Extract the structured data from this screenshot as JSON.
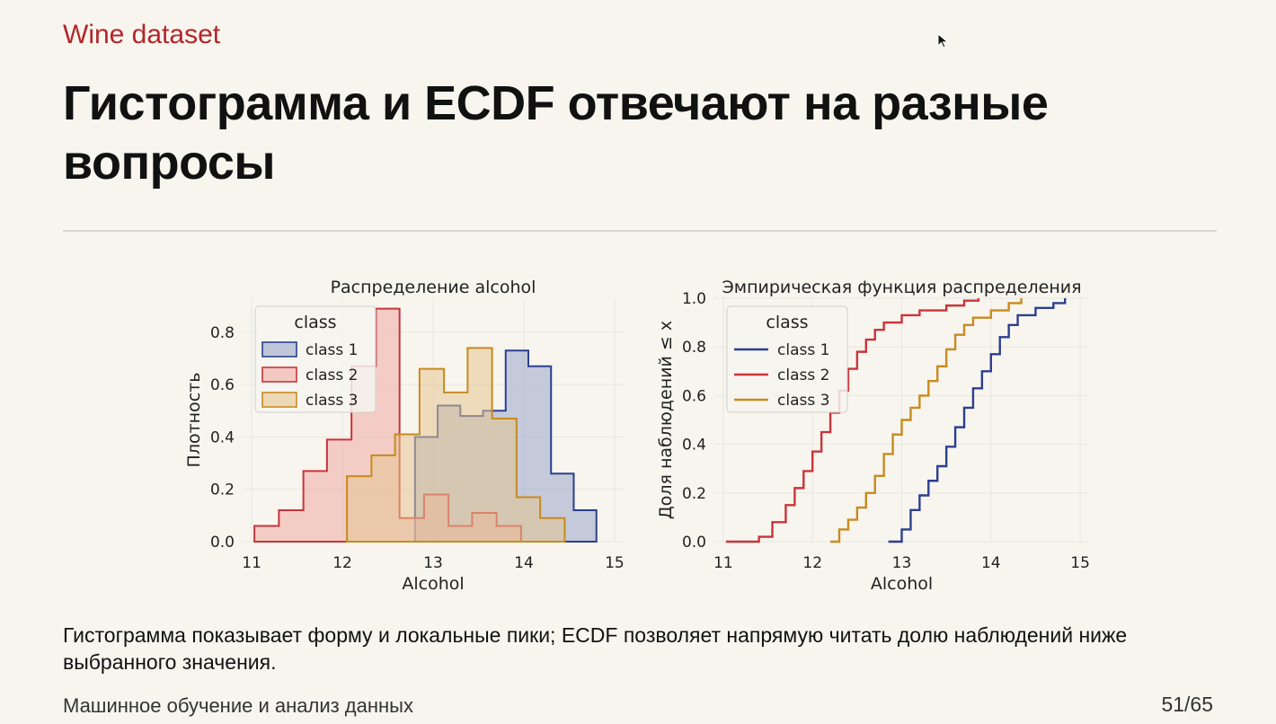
{
  "slide": {
    "subtitle": "Wine dataset",
    "headline": "Гистограмма и ECDF отвечают на разные вопросы",
    "caption": "Гистограмма показывает форму и локальные пики; ECDF позволяет напрямую читать долю наблюдений ниже выбранного значения.",
    "footer_left": "Машинное обучение и анализ данных",
    "page": "51/65"
  },
  "colors": {
    "class_1": "#2b3f8f",
    "class_2": "#c9343a",
    "class_3": "#c98a1f",
    "fill_1": "#9aa6c9",
    "fill_2": "#eeaaa4",
    "fill_3": "#e5c591",
    "grid": "#e7e6e2"
  },
  "chart_data": [
    {
      "type": "histogram",
      "title": "Распределение alcohol",
      "xlabel": "Alcohol",
      "ylabel": "Плотность",
      "xlim": [
        10.9,
        15.1
      ],
      "ylim": [
        0,
        0.93
      ],
      "xticks": [
        "11",
        "12",
        "13",
        "14",
        "15"
      ],
      "yticks": [
        "0.0",
        "0.2",
        "0.4",
        "0.6",
        "0.8"
      ],
      "legend_title": "class",
      "legend_position": "top-left",
      "grid": true,
      "series": [
        {
          "name": "class 1",
          "edges": [
            12.8,
            13.05,
            13.3,
            13.55,
            13.8,
            14.05,
            14.3,
            14.55,
            14.8
          ],
          "values": [
            0.4,
            0.52,
            0.48,
            0.5,
            0.73,
            0.67,
            0.26,
            0.12
          ]
        },
        {
          "name": "class 2",
          "edges": [
            11.03,
            11.3,
            11.57,
            11.83,
            12.1,
            12.37,
            12.63,
            12.9,
            13.17,
            13.43,
            13.7,
            13.97
          ],
          "values": [
            0.06,
            0.12,
            0.27,
            0.39,
            0.67,
            0.89,
            0.09,
            0.18,
            0.06,
            0.11,
            0.06
          ]
        },
        {
          "name": "class 3",
          "edges": [
            12.05,
            12.32,
            12.58,
            12.85,
            13.12,
            13.38,
            13.65,
            13.92,
            14.18,
            14.45
          ],
          "values": [
            0.25,
            0.33,
            0.41,
            0.66,
            0.57,
            0.74,
            0.47,
            0.17,
            0.09
          ]
        }
      ]
    },
    {
      "type": "line",
      "title": "Эмпирическая функция распределения",
      "xlabel": "Alcohol",
      "ylabel": "Доля наблюдений ≤ x",
      "xlim": [
        10.9,
        15.1
      ],
      "ylim": [
        0,
        1.0
      ],
      "xticks": [
        "11",
        "12",
        "13",
        "14",
        "15"
      ],
      "yticks": [
        "0.0",
        "0.2",
        "0.4",
        "0.6",
        "0.8",
        "1.0"
      ],
      "legend_title": "class",
      "legend_position": "top-left",
      "grid": true,
      "series": [
        {
          "name": "class 1",
          "x": [
            12.85,
            13.0,
            13.1,
            13.2,
            13.3,
            13.4,
            13.5,
            13.6,
            13.7,
            13.8,
            13.9,
            14.0,
            14.1,
            14.2,
            14.3,
            14.5,
            14.7,
            14.83
          ],
          "y": [
            0.0,
            0.05,
            0.13,
            0.19,
            0.25,
            0.31,
            0.39,
            0.47,
            0.55,
            0.63,
            0.7,
            0.77,
            0.84,
            0.89,
            0.93,
            0.96,
            0.98,
            1.0
          ]
        },
        {
          "name": "class 2",
          "x": [
            11.03,
            11.4,
            11.55,
            11.7,
            11.8,
            11.9,
            12.0,
            12.1,
            12.2,
            12.3,
            12.4,
            12.5,
            12.6,
            12.7,
            12.8,
            13.0,
            13.2,
            13.5,
            13.7,
            13.86
          ],
          "y": [
            0.0,
            0.02,
            0.08,
            0.15,
            0.22,
            0.29,
            0.37,
            0.45,
            0.53,
            0.62,
            0.71,
            0.78,
            0.83,
            0.87,
            0.9,
            0.93,
            0.95,
            0.97,
            0.99,
            1.0
          ]
        },
        {
          "name": "class 3",
          "x": [
            12.2,
            12.3,
            12.4,
            12.5,
            12.6,
            12.7,
            12.8,
            12.9,
            13.0,
            13.1,
            13.2,
            13.3,
            13.4,
            13.5,
            13.6,
            13.7,
            13.8,
            14.0,
            14.2,
            14.34
          ],
          "y": [
            0.0,
            0.05,
            0.09,
            0.14,
            0.2,
            0.27,
            0.36,
            0.44,
            0.5,
            0.55,
            0.6,
            0.66,
            0.72,
            0.79,
            0.85,
            0.89,
            0.92,
            0.95,
            0.98,
            1.0
          ]
        }
      ]
    }
  ]
}
